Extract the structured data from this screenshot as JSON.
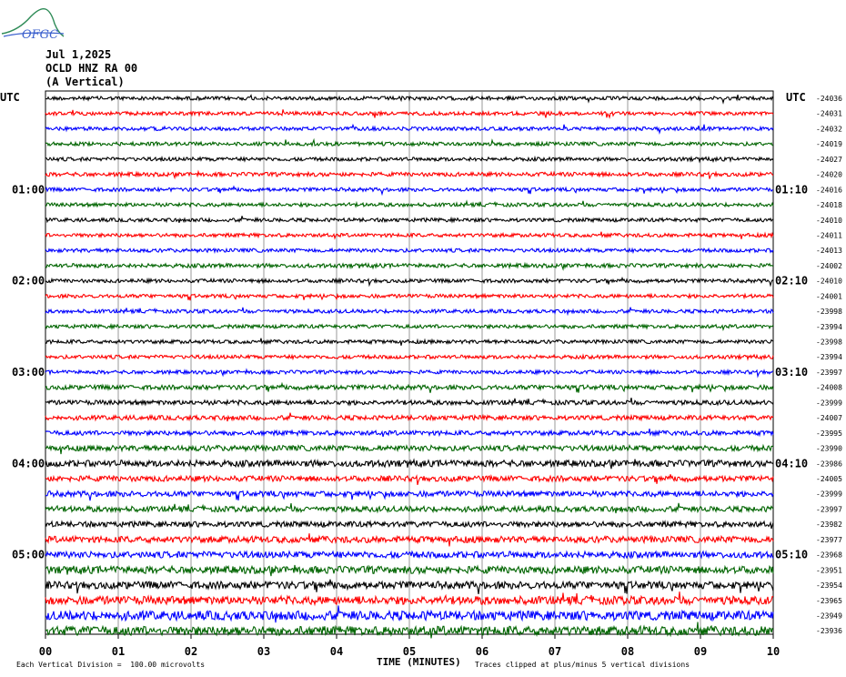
{
  "header": {
    "logo_text": "OFGC",
    "date": "Jul 1,2025",
    "station": "OCLD HNZ RA 00",
    "component": "(A Vertical)"
  },
  "left_axis_label": "UTC",
  "right_axis_label": "UTC",
  "right_top_label": "-24036",
  "footer": {
    "scale": "Each Vertical Division =  100.00 microvolts",
    "x_title": "TIME (MINUTES)",
    "clip_note": "Traces clipped at plus/minus 5 vertical divisions"
  },
  "colors": {
    "trace_cycle": [
      "#000000",
      "#ff0000",
      "#0000ff",
      "#006400"
    ],
    "grid": "#808080"
  },
  "chart_data": {
    "type": "line",
    "title": "",
    "xlabel": "TIME (MINUTES)",
    "ylabel": "",
    "xlim": [
      0,
      10
    ],
    "x_ticks": [
      "00",
      "01",
      "02",
      "03",
      "04",
      "05",
      "06",
      "07",
      "08",
      "09",
      "10"
    ],
    "left_hour_labels": [
      {
        "trace": 6,
        "label": "01:00"
      },
      {
        "trace": 12,
        "label": "02:00"
      },
      {
        "trace": 18,
        "label": "03:00"
      },
      {
        "trace": 24,
        "label": "04:00"
      },
      {
        "trace": 30,
        "label": "05:00"
      }
    ],
    "right_hour_labels": [
      {
        "trace": 6,
        "label": "01:10"
      },
      {
        "trace": 12,
        "label": "02:10"
      },
      {
        "trace": 18,
        "label": "03:10"
      },
      {
        "trace": 24,
        "label": "04:10"
      },
      {
        "trace": 30,
        "label": "05:10"
      }
    ],
    "trace_offsets": [
      "-24036",
      "-24031",
      "-24032",
      "-24019",
      "-24027",
      "-24020",
      "-24016",
      "-24018",
      "-24010",
      "-24011",
      "-24013",
      "-24002",
      "-24010",
      "-24001",
      "-23998",
      "-23994",
      "-23998",
      "-23994",
      "-23997",
      "-24008",
      "-23999",
      "-24007",
      "-23995",
      "-23990",
      "-23986",
      "-24005",
      "-23999",
      "-23997",
      "-23982",
      "-23977",
      "-23968",
      "-23951",
      "-23954",
      "-23965",
      "-23949",
      "-23936"
    ],
    "trace_amplitude": [
      2,
      2,
      2,
      2,
      2,
      2.2,
      2,
      2,
      2,
      2,
      2,
      2.2,
      2,
      2,
      2,
      2,
      2,
      2,
      2,
      2.5,
      2.5,
      2.5,
      2.5,
      3,
      3.5,
      3,
      3,
      3,
      3,
      3.5,
      3.5,
      4,
      4,
      4.5,
      5,
      5
    ]
  }
}
